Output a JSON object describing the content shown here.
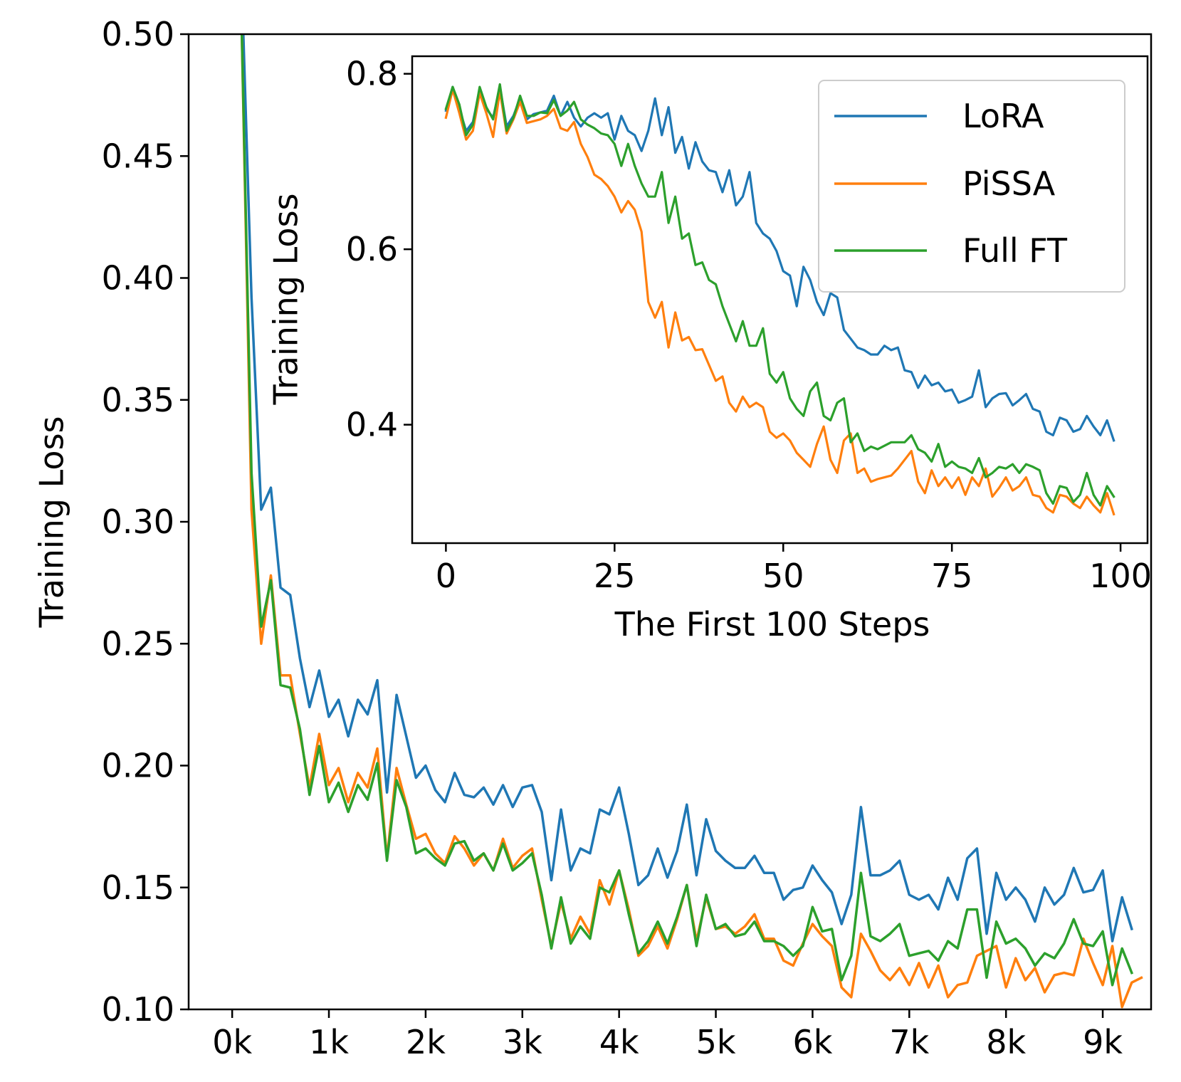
{
  "chart_data": [
    {
      "type": "line",
      "name": "main",
      "xlabel": "",
      "ylabel": "Training Loss",
      "xlim": [
        -450,
        9500
      ],
      "ylim": [
        0.1,
        0.5
      ],
      "xticks": [
        0,
        1000,
        2000,
        3000,
        4000,
        5000,
        6000,
        7000,
        8000,
        9000
      ],
      "xtick_labels": [
        "0k",
        "1k",
        "2k",
        "3k",
        "4k",
        "5k",
        "6k",
        "7k",
        "8k",
        "9k"
      ],
      "yticks": [
        0.1,
        0.15,
        0.2,
        0.25,
        0.3,
        0.35,
        0.4,
        0.45,
        0.5
      ],
      "ytick_labels": [
        "0.10",
        "0.15",
        "0.20",
        "0.25",
        "0.30",
        "0.35",
        "0.40",
        "0.45",
        "0.50"
      ],
      "x_start": 100,
      "x_step": 100,
      "series": [
        {
          "name": "LoRA",
          "color": "#1f77b4",
          "values": [
            0.52,
            0.392,
            0.305,
            0.314,
            0.273,
            0.27,
            0.244,
            0.224,
            0.239,
            0.22,
            0.227,
            0.212,
            0.227,
            0.221,
            0.235,
            0.189,
            0.229,
            0.212,
            0.195,
            0.2,
            0.19,
            0.185,
            0.197,
            0.188,
            0.187,
            0.191,
            0.184,
            0.192,
            0.183,
            0.191,
            0.192,
            0.181,
            0.153,
            0.182,
            0.157,
            0.166,
            0.164,
            0.182,
            0.18,
            0.191,
            0.172,
            0.151,
            0.155,
            0.166,
            0.154,
            0.165,
            0.184,
            0.155,
            0.178,
            0.165,
            0.161,
            0.158,
            0.158,
            0.163,
            0.156,
            0.156,
            0.145,
            0.149,
            0.15,
            0.159,
            0.153,
            0.148,
            0.135,
            0.147,
            0.183,
            0.155,
            0.155,
            0.157,
            0.161,
            0.147,
            0.145,
            0.147,
            0.141,
            0.154,
            0.145,
            0.162,
            0.166,
            0.131,
            0.156,
            0.145,
            0.15,
            0.145,
            0.136,
            0.15,
            0.143,
            0.147,
            0.158,
            0.148,
            0.149,
            0.157,
            0.128,
            0.146,
            0.133
          ]
        },
        {
          "name": "PiSSA",
          "color": "#ff7f0e",
          "values": [
            0.5,
            0.305,
            0.25,
            0.278,
            0.237,
            0.237,
            0.213,
            0.191,
            0.213,
            0.192,
            0.199,
            0.185,
            0.197,
            0.191,
            0.207,
            0.162,
            0.199,
            0.184,
            0.17,
            0.172,
            0.164,
            0.16,
            0.171,
            0.166,
            0.159,
            0.164,
            0.157,
            0.17,
            0.158,
            0.163,
            0.166,
            0.145,
            0.126,
            0.144,
            0.129,
            0.138,
            0.131,
            0.153,
            0.143,
            0.157,
            0.141,
            0.122,
            0.126,
            0.134,
            0.125,
            0.137,
            0.151,
            0.128,
            0.146,
            0.133,
            0.134,
            0.131,
            0.134,
            0.139,
            0.129,
            0.129,
            0.12,
            0.118,
            0.127,
            0.135,
            0.13,
            0.126,
            0.109,
            0.105,
            0.131,
            0.124,
            0.116,
            0.112,
            0.117,
            0.11,
            0.119,
            0.109,
            0.118,
            0.105,
            0.11,
            0.111,
            0.122,
            0.124,
            0.126,
            0.109,
            0.121,
            0.112,
            0.117,
            0.107,
            0.114,
            0.115,
            0.114,
            0.129,
            0.119,
            0.11,
            0.126,
            0.101,
            0.111,
            0.113
          ]
        },
        {
          "name": "Full FT",
          "color": "#2ca02c",
          "values": [
            0.5,
            0.32,
            0.257,
            0.276,
            0.233,
            0.232,
            0.215,
            0.188,
            0.208,
            0.185,
            0.193,
            0.181,
            0.192,
            0.186,
            0.201,
            0.161,
            0.194,
            0.183,
            0.164,
            0.166,
            0.162,
            0.159,
            0.168,
            0.169,
            0.161,
            0.164,
            0.157,
            0.168,
            0.157,
            0.16,
            0.164,
            0.147,
            0.125,
            0.146,
            0.127,
            0.134,
            0.129,
            0.15,
            0.148,
            0.157,
            0.139,
            0.123,
            0.128,
            0.136,
            0.127,
            0.138,
            0.151,
            0.126,
            0.147,
            0.133,
            0.135,
            0.13,
            0.131,
            0.136,
            0.128,
            0.128,
            0.126,
            0.122,
            0.126,
            0.142,
            0.132,
            0.133,
            0.112,
            0.122,
            0.156,
            0.13,
            0.128,
            0.131,
            0.135,
            0.122,
            0.123,
            0.124,
            0.12,
            0.128,
            0.125,
            0.141,
            0.141,
            0.113,
            0.136,
            0.127,
            0.129,
            0.125,
            0.118,
            0.123,
            0.121,
            0.127,
            0.137,
            0.127,
            0.126,
            0.132,
            0.11,
            0.125,
            0.115
          ]
        }
      ]
    },
    {
      "type": "line",
      "name": "inset",
      "xlabel": "The First 100 Steps",
      "ylabel": "Training Loss",
      "xlim": [
        -5,
        104
      ],
      "ylim": [
        0.265,
        0.82
      ],
      "xticks": [
        0,
        25,
        50,
        75,
        100
      ],
      "xtick_labels": [
        "0",
        "25",
        "50",
        "75",
        "100"
      ],
      "yticks": [
        0.4,
        0.6,
        0.8
      ],
      "ytick_labels": [
        "0.4",
        "0.6",
        "0.8"
      ],
      "x_start": 0,
      "x_step": 1,
      "legend": {
        "placement": "top-right",
        "entries": [
          "LoRA",
          "PiSSA",
          "Full FT"
        ]
      },
      "series": [
        {
          "name": "LoRA",
          "color": "#1f77b4",
          "values": [
            0.758,
            0.785,
            0.76,
            0.735,
            0.745,
            0.782,
            0.76,
            0.75,
            0.785,
            0.74,
            0.752,
            0.772,
            0.748,
            0.754,
            0.756,
            0.758,
            0.775,
            0.752,
            0.768,
            0.75,
            0.74,
            0.75,
            0.755,
            0.75,
            0.755,
            0.725,
            0.752,
            0.735,
            0.73,
            0.712,
            0.735,
            0.772,
            0.73,
            0.762,
            0.71,
            0.728,
            0.692,
            0.722,
            0.7,
            0.69,
            0.688,
            0.665,
            0.69,
            0.65,
            0.66,
            0.688,
            0.63,
            0.618,
            0.612,
            0.598,
            0.575,
            0.57,
            0.535,
            0.58,
            0.565,
            0.54,
            0.525,
            0.55,
            0.545,
            0.508,
            0.498,
            0.488,
            0.485,
            0.48,
            0.48,
            0.49,
            0.485,
            0.488,
            0.462,
            0.46,
            0.442,
            0.456,
            0.445,
            0.448,
            0.438,
            0.44,
            0.425,
            0.428,
            0.432,
            0.462,
            0.42,
            0.43,
            0.435,
            0.436,
            0.422,
            0.428,
            0.435,
            0.418,
            0.415,
            0.392,
            0.388,
            0.408,
            0.405,
            0.392,
            0.395,
            0.41,
            0.398,
            0.388,
            0.405,
            0.382
          ]
        },
        {
          "name": "PiSSA",
          "color": "#ff7f0e",
          "values": [
            0.75,
            0.782,
            0.755,
            0.725,
            0.735,
            0.778,
            0.755,
            0.728,
            0.78,
            0.732,
            0.748,
            0.768,
            0.744,
            0.746,
            0.748,
            0.752,
            0.76,
            0.738,
            0.735,
            0.745,
            0.72,
            0.705,
            0.685,
            0.68,
            0.672,
            0.66,
            0.642,
            0.655,
            0.645,
            0.62,
            0.54,
            0.522,
            0.54,
            0.488,
            0.528,
            0.496,
            0.5,
            0.485,
            0.486,
            0.468,
            0.45,
            0.455,
            0.425,
            0.415,
            0.432,
            0.42,
            0.425,
            0.42,
            0.392,
            0.385,
            0.39,
            0.382,
            0.368,
            0.36,
            0.352,
            0.378,
            0.398,
            0.36,
            0.345,
            0.382,
            0.39,
            0.345,
            0.35,
            0.335,
            0.338,
            0.34,
            0.342,
            0.35,
            0.36,
            0.37,
            0.335,
            0.322,
            0.348,
            0.33,
            0.34,
            0.328,
            0.34,
            0.32,
            0.34,
            0.33,
            0.35,
            0.318,
            0.328,
            0.34,
            0.325,
            0.33,
            0.34,
            0.32,
            0.318,
            0.305,
            0.3,
            0.32,
            0.318,
            0.31,
            0.305,
            0.318,
            0.308,
            0.3,
            0.322,
            0.298
          ]
        },
        {
          "name": "Full FT",
          "color": "#2ca02c",
          "values": [
            0.76,
            0.785,
            0.765,
            0.73,
            0.742,
            0.785,
            0.762,
            0.748,
            0.788,
            0.735,
            0.75,
            0.775,
            0.752,
            0.752,
            0.756,
            0.755,
            0.77,
            0.752,
            0.758,
            0.768,
            0.748,
            0.742,
            0.738,
            0.732,
            0.73,
            0.72,
            0.695,
            0.72,
            0.695,
            0.675,
            0.66,
            0.66,
            0.688,
            0.63,
            0.66,
            0.612,
            0.618,
            0.582,
            0.585,
            0.565,
            0.56,
            0.535,
            0.515,
            0.495,
            0.518,
            0.49,
            0.49,
            0.51,
            0.458,
            0.448,
            0.46,
            0.43,
            0.418,
            0.41,
            0.438,
            0.448,
            0.41,
            0.405,
            0.425,
            0.43,
            0.38,
            0.39,
            0.37,
            0.375,
            0.372,
            0.376,
            0.38,
            0.38,
            0.38,
            0.388,
            0.372,
            0.368,
            0.358,
            0.378,
            0.352,
            0.358,
            0.352,
            0.35,
            0.345,
            0.362,
            0.34,
            0.345,
            0.352,
            0.35,
            0.355,
            0.345,
            0.355,
            0.352,
            0.348,
            0.322,
            0.31,
            0.33,
            0.328,
            0.312,
            0.32,
            0.345,
            0.32,
            0.308,
            0.33,
            0.318
          ]
        }
      ]
    }
  ]
}
